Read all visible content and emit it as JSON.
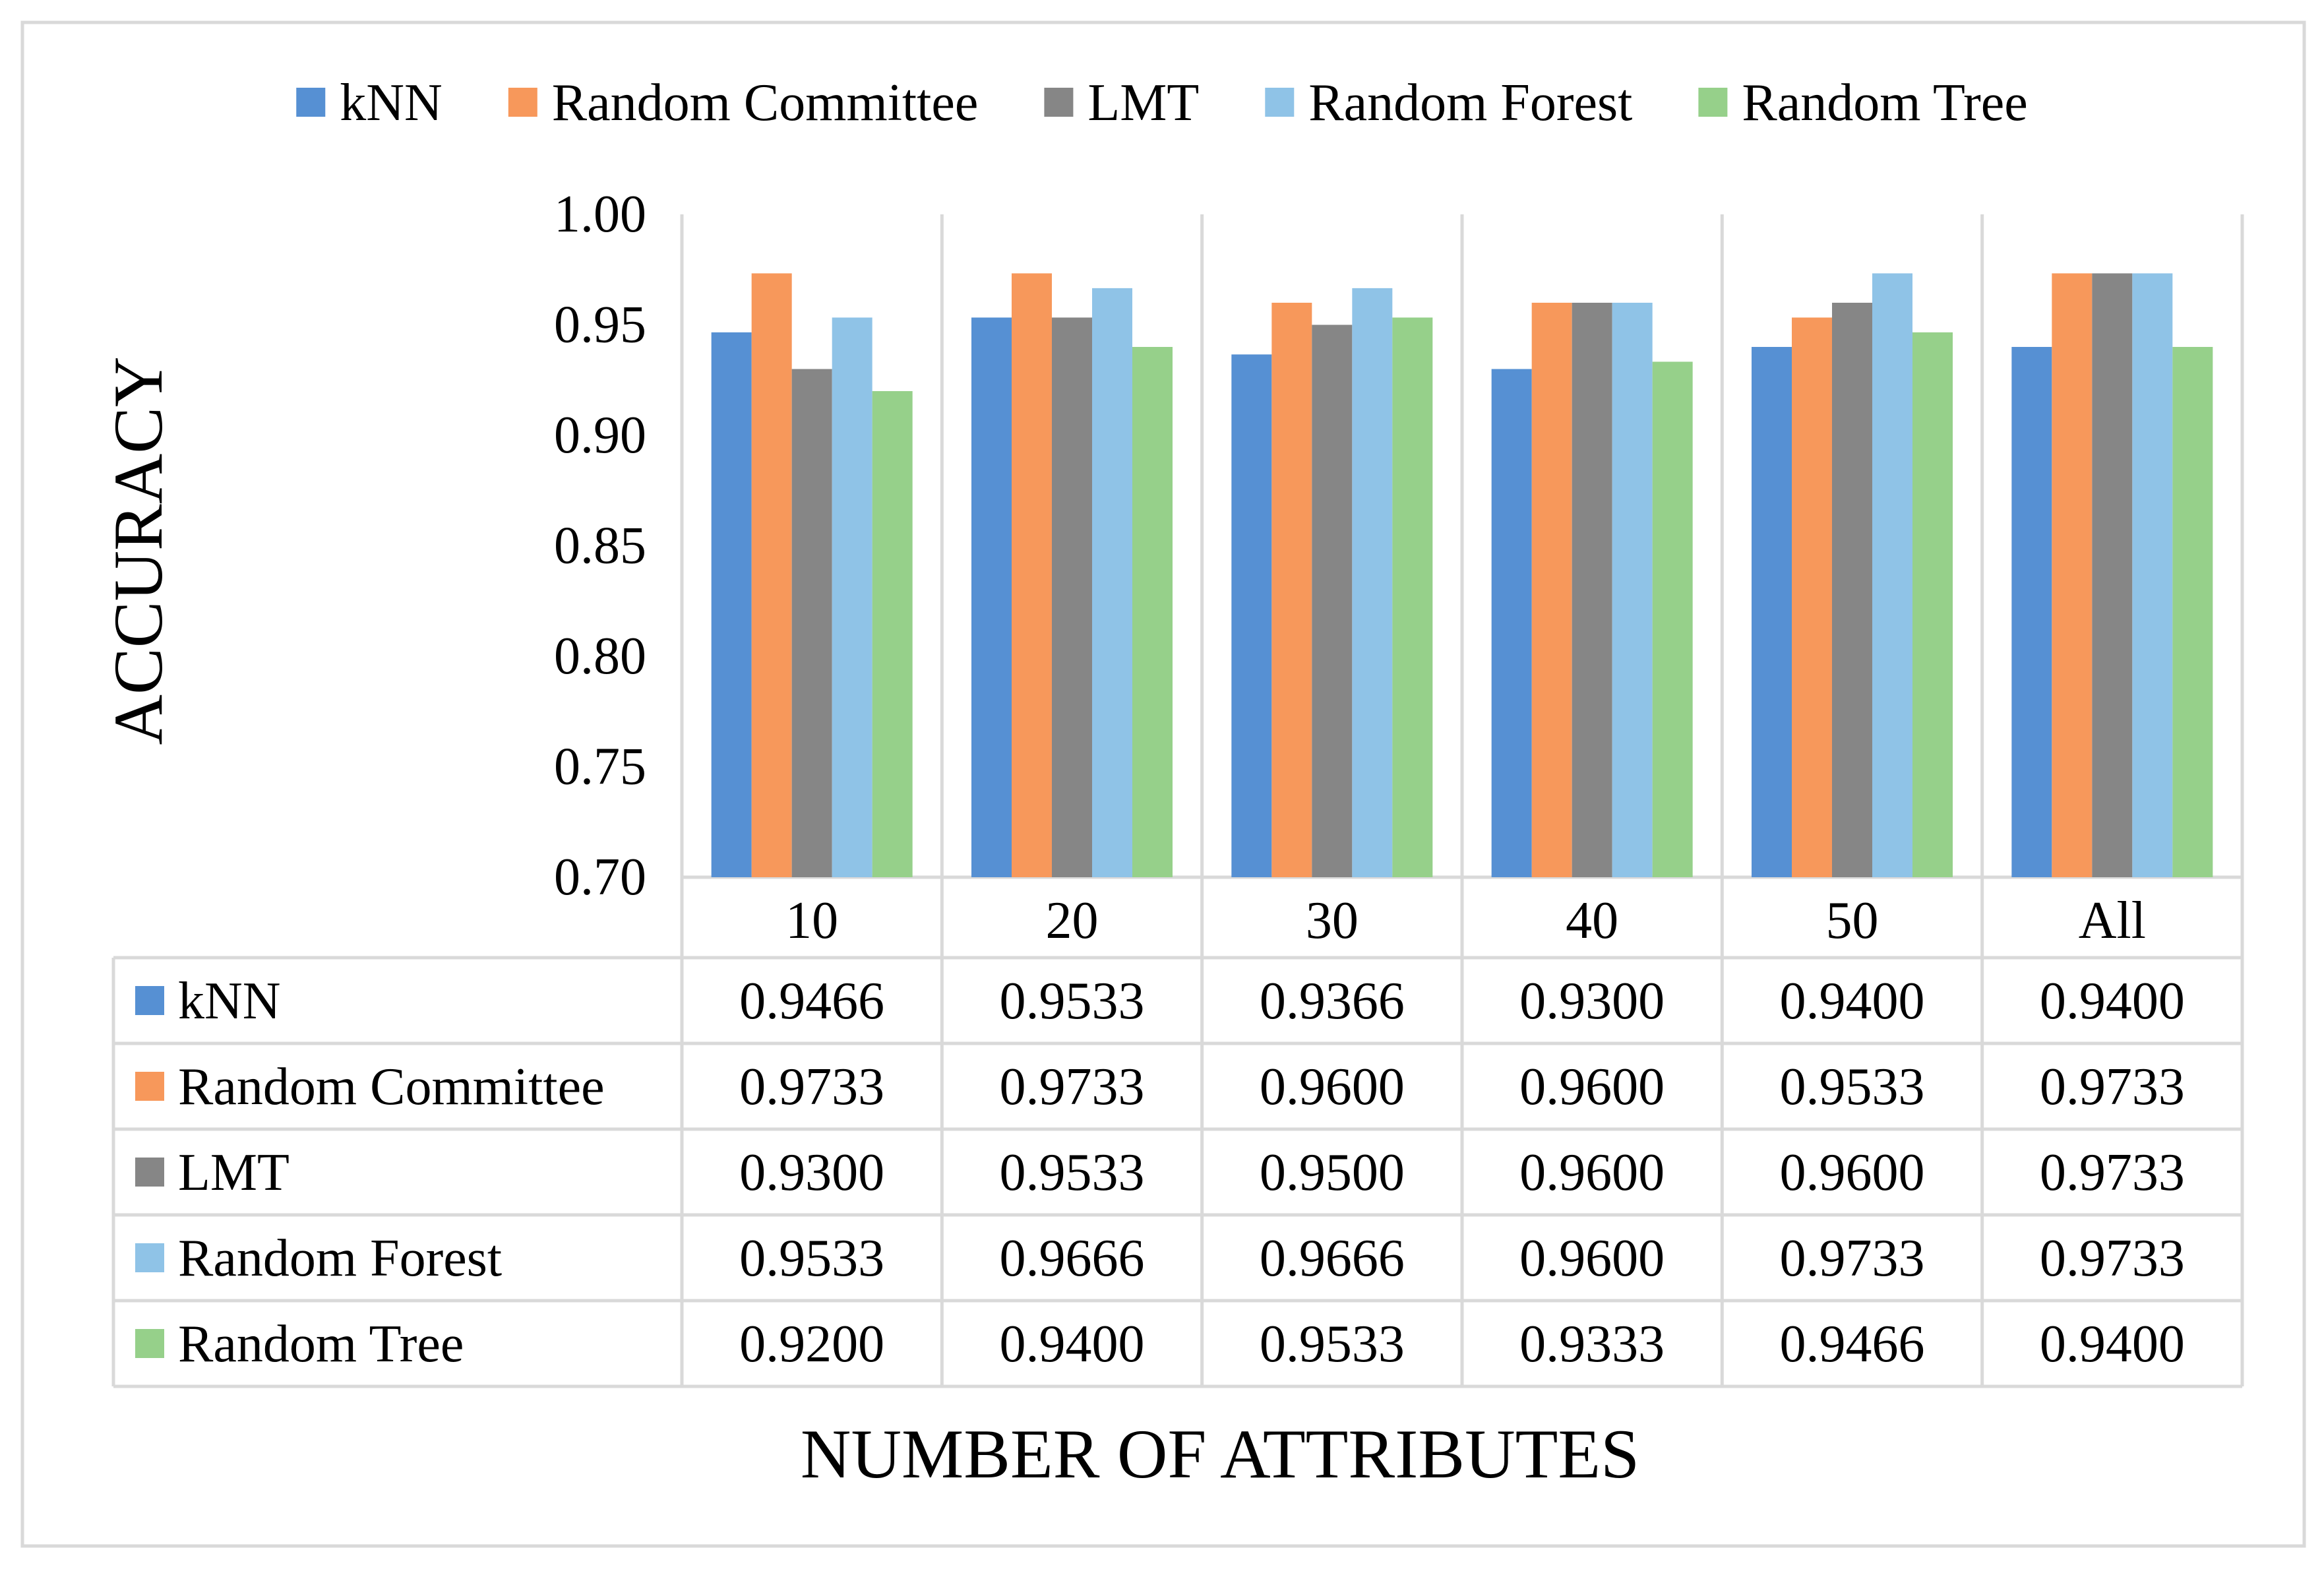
{
  "chart_data": {
    "type": "bar",
    "title": "",
    "xlabel": "NUMBER OF ATTRIBUTES",
    "ylabel": "ACCURACY",
    "ylim": [
      0.7,
      1.0
    ],
    "yticks": [
      "0.70",
      "0.75",
      "0.80",
      "0.85",
      "0.90",
      "0.95",
      "1.00"
    ],
    "ytick_values": [
      0.7,
      0.75,
      0.8,
      0.85,
      0.9,
      0.95,
      1.0
    ],
    "grid": "vertical category separators",
    "legend_position": "top",
    "categories": [
      "10",
      "20",
      "30",
      "40",
      "50",
      "All"
    ],
    "series": [
      {
        "name": "kNN",
        "color": "#5690D3",
        "values": [
          0.9466,
          0.9533,
          0.9366,
          0.93,
          0.94,
          0.94
        ],
        "labels": [
          "0.9466",
          "0.9533",
          "0.9366",
          "0.9300",
          "0.9400",
          "0.9400"
        ]
      },
      {
        "name": "Random Committee",
        "color": "#F7985B",
        "values": [
          0.9733,
          0.9733,
          0.96,
          0.96,
          0.9533,
          0.9733
        ],
        "labels": [
          "0.9733",
          "0.9733",
          "0.9600",
          "0.9600",
          "0.9533",
          "0.9733"
        ]
      },
      {
        "name": "LMT",
        "color": "#868686",
        "values": [
          0.93,
          0.9533,
          0.95,
          0.96,
          0.96,
          0.9733
        ],
        "labels": [
          "0.9300",
          "0.9533",
          "0.9500",
          "0.9600",
          "0.9600",
          "0.9733"
        ]
      },
      {
        "name": "Random Forest",
        "color": "#8FC3E7",
        "values": [
          0.9533,
          0.9666,
          0.9666,
          0.96,
          0.9733,
          0.9733
        ],
        "labels": [
          "0.9533",
          "0.9666",
          "0.9666",
          "0.9600",
          "0.9733",
          "0.9733"
        ]
      },
      {
        "name": "Random Tree",
        "color": "#96D08A",
        "values": [
          0.92,
          0.94,
          0.9533,
          0.9333,
          0.9466,
          0.94
        ],
        "labels": [
          "0.9200",
          "0.9400",
          "0.9533",
          "0.9333",
          "0.9466",
          "0.9400"
        ]
      }
    ],
    "grid_color": "#D9D9D9",
    "border_color": "#D9D9D9"
  }
}
